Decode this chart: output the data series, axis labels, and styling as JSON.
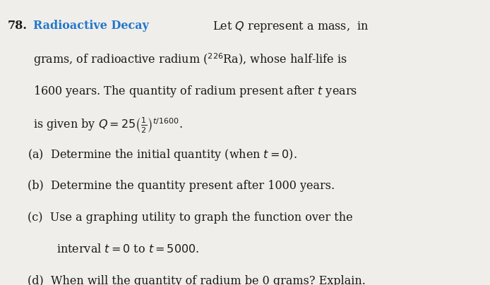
{
  "problem_number": "78.",
  "title": "Radioactive Decay",
  "line1_after_title": "  Let $Q$ represent a mass,  in",
  "line2": "grams, of radioactive radium ($^{226}$Ra), whose half-life is",
  "line3": "1600 years. The quantity of radium present after $t$ years",
  "line4": "is given by $Q = 25\\left(\\frac{1}{2}\\right)^{t/1600}$.",
  "part_a": "(a)  Determine the initial quantity (when $t = 0$).",
  "part_b": "(b)  Determine the quantity present after 1000 years.",
  "part_c_line1": "(c)  Use a graphing utility to graph the function over the",
  "part_c_line2": "       interval $t = 0$ to $t = 5000$.",
  "part_d": "(d)  When will the quantity of radium be 0 grams? Explain.",
  "bg_color": "#f0eeea",
  "title_color": "#2277cc",
  "text_color": "#1a1a1a",
  "fs": 11.5,
  "lh": 0.112
}
